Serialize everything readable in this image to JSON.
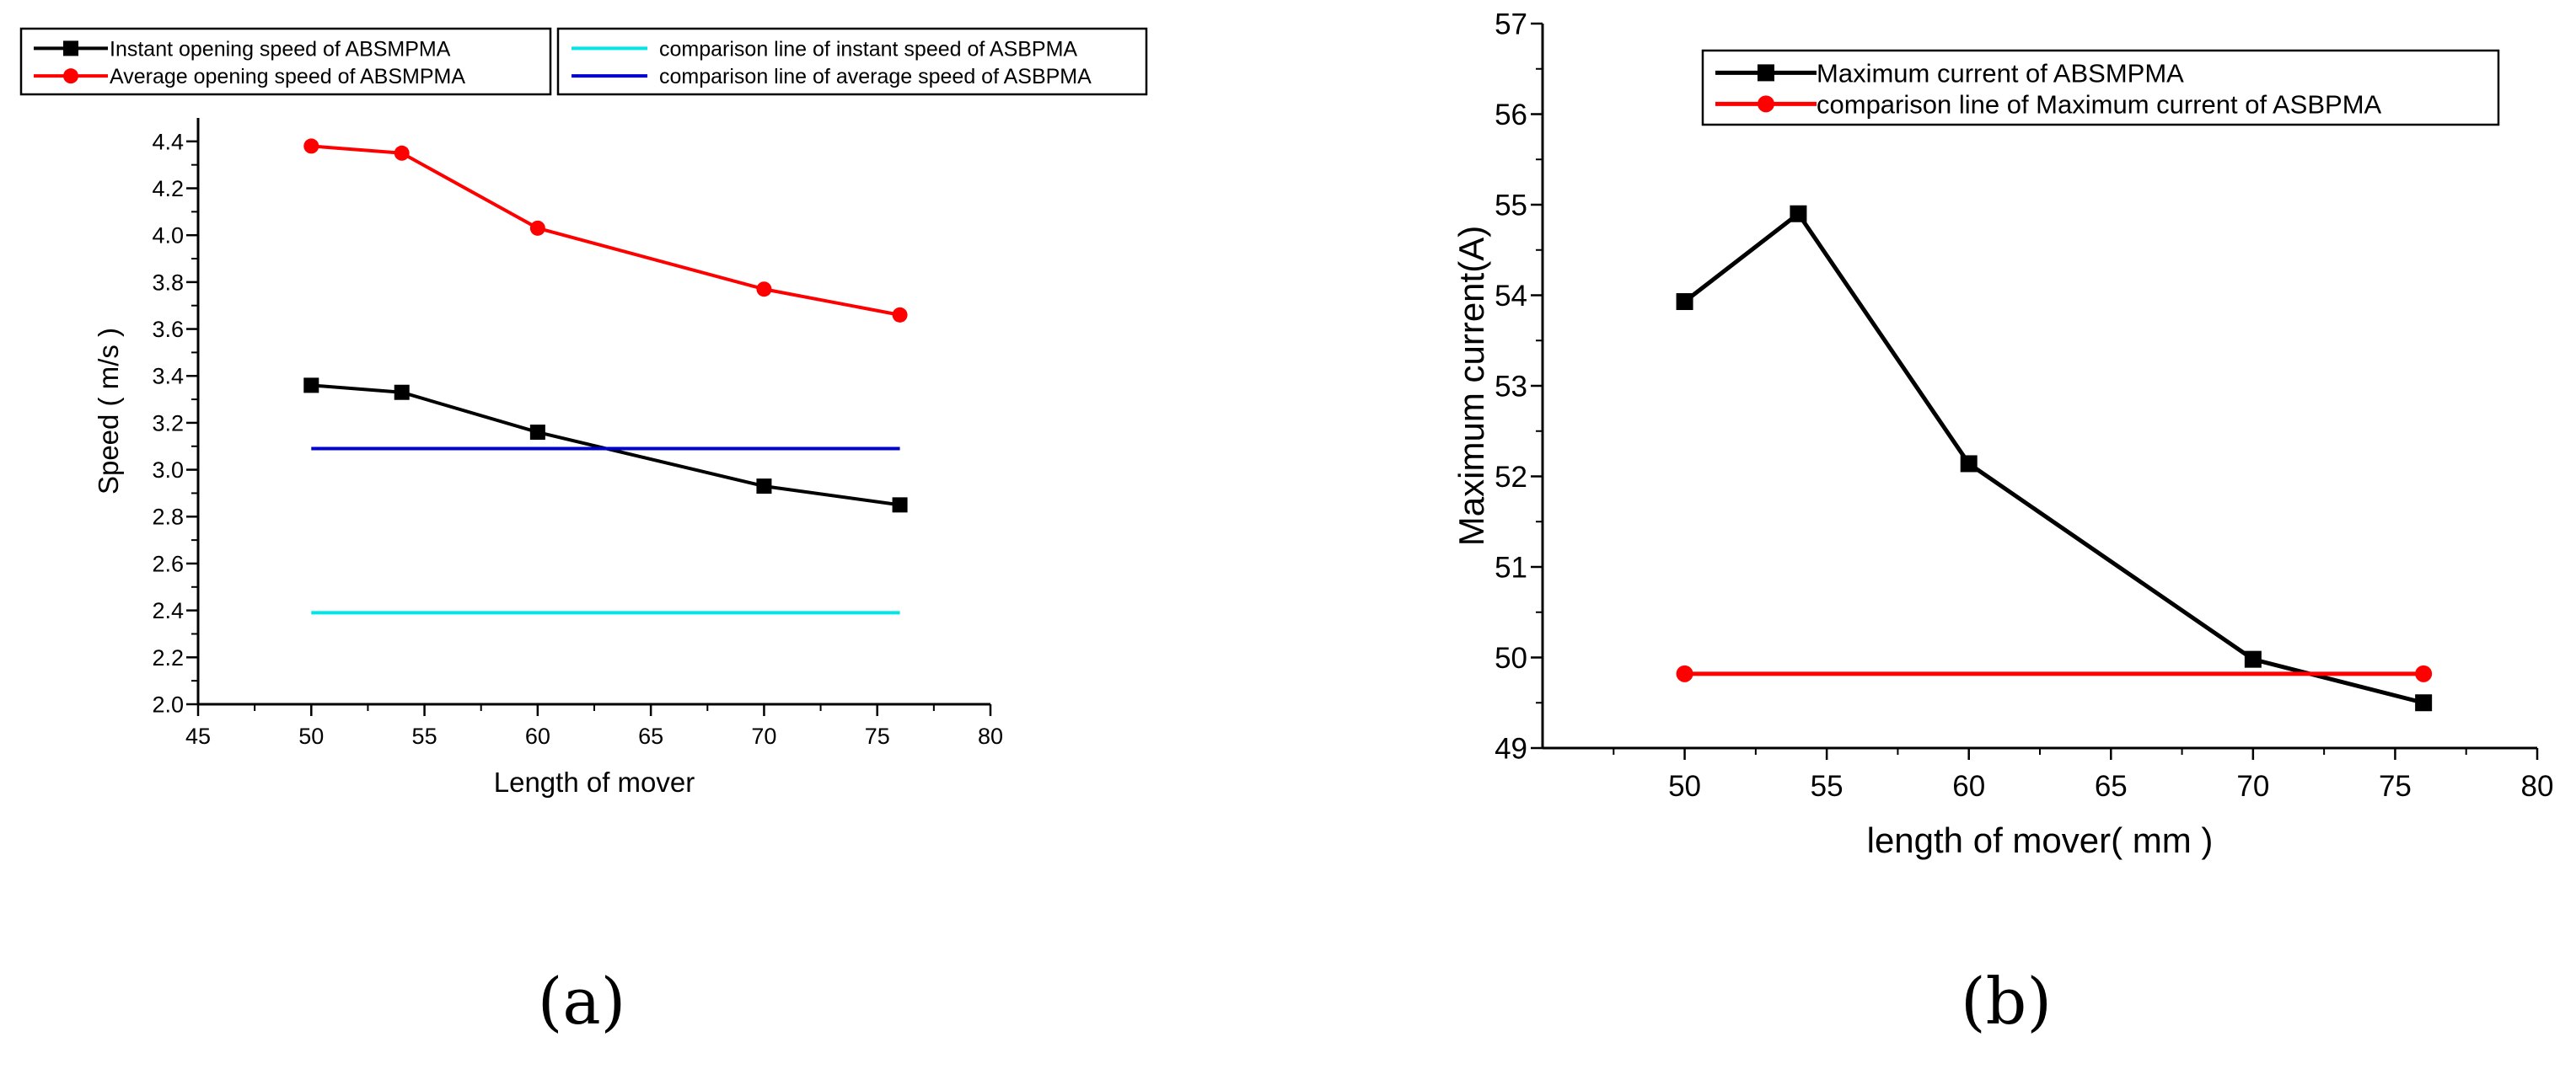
{
  "chart_data": [
    {
      "type": "line",
      "panel_label": "(a)",
      "title": "",
      "xlabel": "Length of mover",
      "ylabel": "Speed ( m/s )",
      "xlim": [
        45,
        80
      ],
      "ylim": [
        2.0,
        4.5
      ],
      "xticks": [
        45,
        50,
        55,
        60,
        65,
        70,
        75,
        80
      ],
      "xtick_labels": [
        "45",
        "50",
        "55",
        "60",
        "65",
        "70",
        "75",
        "80"
      ],
      "yticks": [
        2.0,
        2.2,
        2.4,
        2.6,
        2.8,
        3.0,
        3.2,
        3.4,
        3.6,
        3.8,
        4.0,
        4.2,
        4.4
      ],
      "ytick_labels": [
        "2.0",
        "2.2",
        "2.4",
        "2.6",
        "2.8",
        "3.0",
        "3.2",
        "3.4",
        "3.6",
        "3.8",
        "4.0",
        "4.2",
        "4.4"
      ],
      "grid": false,
      "legend_location": "top, outside plot (two boxes)",
      "series": [
        {
          "name": "Instant opening speed of ABSMPMA",
          "color": "#000000",
          "marker": "square",
          "x": [
            50,
            54,
            60,
            70,
            76
          ],
          "y": [
            3.36,
            3.33,
            3.16,
            2.93,
            2.85
          ]
        },
        {
          "name": "Average opening speed of ABSMPMA",
          "color": "#ff0000",
          "marker": "circle",
          "x": [
            50,
            54,
            60,
            70,
            76
          ],
          "y": [
            4.38,
            4.35,
            4.03,
            3.77,
            3.66
          ]
        },
        {
          "name": "comparison line of instant speed of ASBPMA",
          "color": "#00e5e5",
          "marker": "none",
          "x": [
            50,
            76
          ],
          "y": [
            2.39,
            2.39
          ]
        },
        {
          "name": "comparison line of average speed of ASBPMA",
          "color": "#0000cc",
          "marker": "none",
          "x": [
            50,
            76
          ],
          "y": [
            3.09,
            3.09
          ]
        }
      ]
    },
    {
      "type": "line",
      "panel_label": "(b)",
      "title": "",
      "xlabel": "length of mover( mm )",
      "ylabel": "Maximum current(A)",
      "xlim": [
        45,
        80
      ],
      "ylim": [
        49,
        57
      ],
      "xticks": [
        50,
        55,
        60,
        65,
        70,
        75,
        80
      ],
      "xtick_labels": [
        "50",
        "55",
        "60",
        "65",
        "70",
        "75",
        "80"
      ],
      "yticks": [
        49,
        50,
        51,
        52,
        53,
        54,
        55,
        56,
        57
      ],
      "ytick_labels": [
        "49",
        "50",
        "51",
        "52",
        "53",
        "54",
        "55",
        "56",
        "57"
      ],
      "grid": false,
      "legend_location": "top-right inside plot",
      "series": [
        {
          "name": "Maximum current of ABSMPMA",
          "color": "#000000",
          "marker": "square",
          "x": [
            50,
            54,
            60,
            70,
            76
          ],
          "y": [
            53.93,
            54.9,
            52.14,
            49.98,
            49.5
          ]
        },
        {
          "name": "comparison line of Maximum current of ASBPMA",
          "color": "#ff0000",
          "marker": "circle",
          "x": [
            50,
            76
          ],
          "y": [
            49.82,
            49.82
          ]
        }
      ]
    }
  ]
}
